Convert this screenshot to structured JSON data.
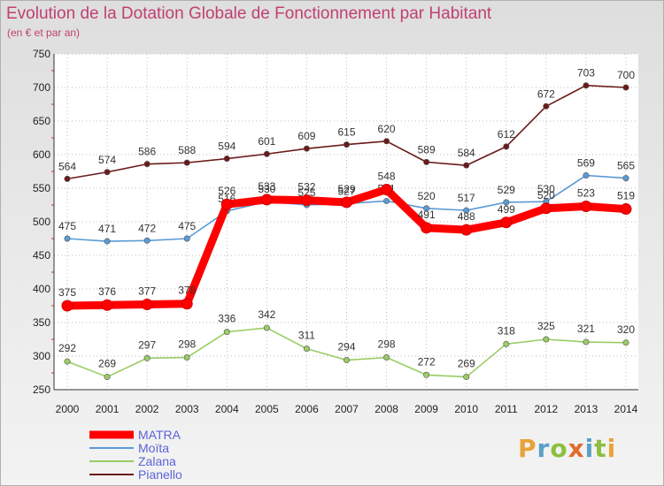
{
  "title": "Evolution de la Dotation Globale de Fonctionnement par Habitant",
  "subtitle": "(en € et par an)",
  "logo": "Proxiti",
  "chart_data": {
    "type": "line",
    "x": [
      2000,
      2001,
      2002,
      2003,
      2004,
      2005,
      2006,
      2007,
      2008,
      2009,
      2010,
      2011,
      2012,
      2013,
      2014
    ],
    "ylim": [
      250,
      750
    ],
    "yticks": [
      250,
      300,
      350,
      400,
      450,
      500,
      550,
      600,
      650,
      700,
      750
    ],
    "grid": true,
    "legend_position": "bottom-left",
    "series": [
      {
        "name": "Pianello",
        "color": "#6b1a1a",
        "values": [
          564,
          574,
          586,
          588,
          594,
          601,
          609,
          615,
          620,
          589,
          584,
          612,
          672,
          703,
          700
        ]
      },
      {
        "name": "Moïta",
        "color": "#5b9bd5",
        "values": [
          475,
          471,
          472,
          475,
          516,
          530,
          525,
          527,
          531,
          520,
          517,
          529,
          530,
          569,
          565
        ]
      },
      {
        "name": "Zalana",
        "color": "#99cc66",
        "values": [
          292,
          269,
          297,
          298,
          336,
          342,
          311,
          294,
          298,
          272,
          269,
          318,
          325,
          321,
          320
        ]
      },
      {
        "name": "MATRA",
        "color": "#ff0000",
        "values": [
          375,
          376,
          377,
          378,
          526,
          533,
          532,
          529,
          548,
          491,
          488,
          499,
          520,
          523,
          519
        ]
      }
    ],
    "legend_order": [
      "MATRA",
      "Moïta",
      "Zalana",
      "Pianello"
    ]
  }
}
